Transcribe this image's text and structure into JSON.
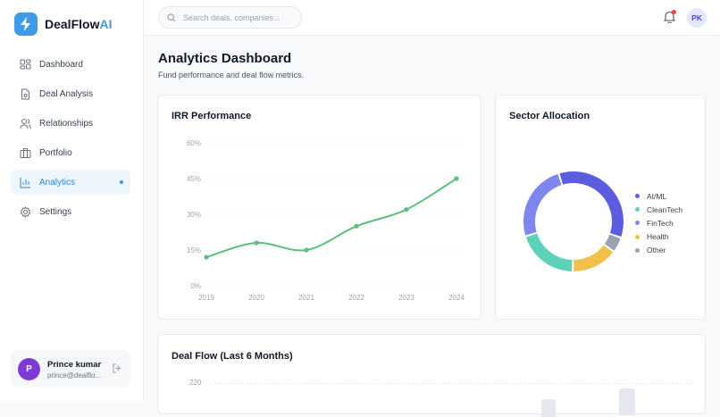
{
  "brand": {
    "name": "DealFlow",
    "accent": "AI"
  },
  "sidebar": {
    "items": [
      {
        "label": "Dashboard",
        "icon": "grid-icon"
      },
      {
        "label": "Deal Analysis",
        "icon": "document-icon"
      },
      {
        "label": "Relationships",
        "icon": "users-icon"
      },
      {
        "label": "Portfolio",
        "icon": "briefcase-icon"
      },
      {
        "label": "Analytics",
        "icon": "bar-chart-icon",
        "active": true
      },
      {
        "label": "Settings",
        "icon": "gear-icon"
      }
    ],
    "user": {
      "initial": "P",
      "name": "Prince kumar",
      "email": "prince@dealflo..."
    }
  },
  "topbar": {
    "search_placeholder": "Search deals, companies...",
    "avatar": "PK"
  },
  "page": {
    "title": "Analytics Dashboard",
    "subtitle": "Fund performance and deal flow metrics."
  },
  "colors": {
    "accent": "#3f9be6",
    "line": "#5cbf7c"
  },
  "chart_data": [
    {
      "type": "line",
      "title": "IRR Performance",
      "categories": [
        "2019",
        "2020",
        "2021",
        "2022",
        "2023",
        "2024"
      ],
      "values": [
        12,
        18,
        15,
        25,
        32,
        45
      ],
      "ylim": [
        0,
        60
      ],
      "yticks": [
        "0%",
        "15%",
        "30%",
        "45%",
        "60%"
      ],
      "grid": true
    },
    {
      "type": "pie",
      "title": "Sector Allocation",
      "donut": true,
      "legend": "right",
      "slices": [
        {
          "name": "AI/ML",
          "value": 35,
          "color": "#5b5ce0"
        },
        {
          "name": "Other",
          "value": 5,
          "color": "#98a2b3"
        },
        {
          "name": "Health",
          "value": 15,
          "color": "#f1c14c"
        },
        {
          "name": "CleanTech",
          "value": 20,
          "color": "#5fd1b8"
        },
        {
          "name": "FinTech",
          "value": 25,
          "color": "#7f86ee"
        }
      ],
      "legend_order": [
        "AI/ML",
        "CleanTech",
        "FinTech",
        "Health",
        "Other"
      ]
    },
    {
      "type": "bar",
      "title": "Deal Flow (Last 6 Months)",
      "yticks": [
        "220"
      ]
    }
  ]
}
